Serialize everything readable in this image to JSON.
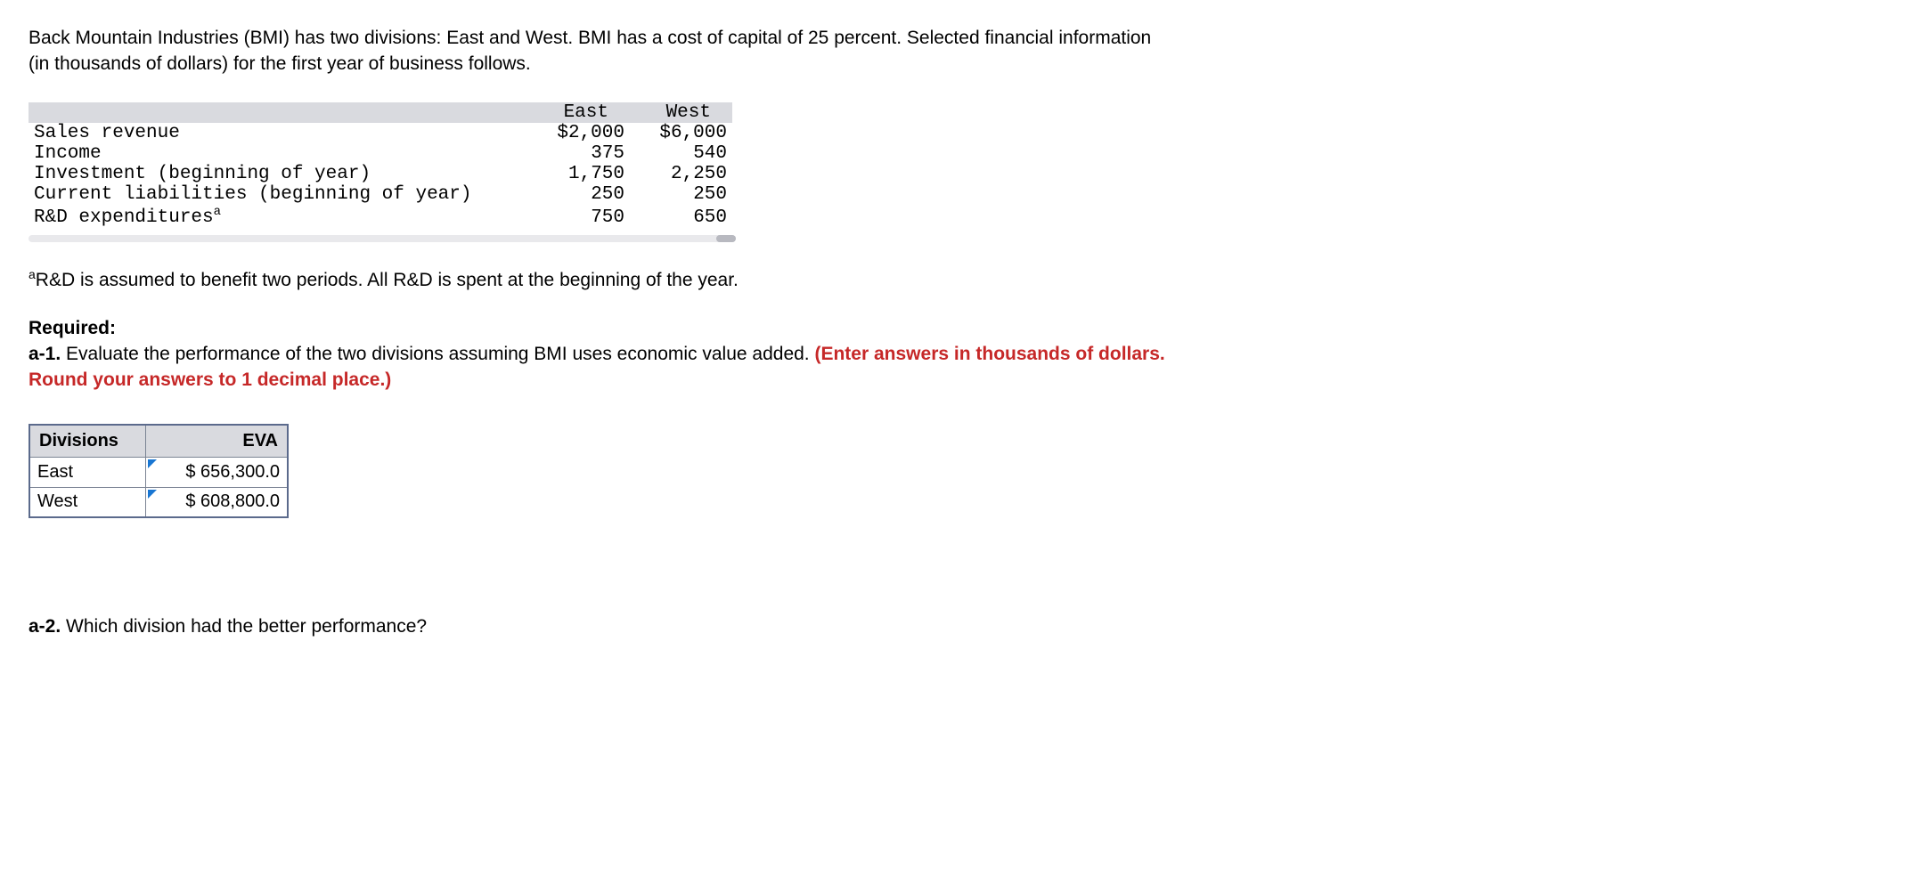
{
  "problem": {
    "line1": "Back Mountain Industries (BMI) has two divisions: East and West. BMI has a cost of capital of 25 percent. Selected financial information",
    "line2": "(in thousands of dollars) for the first year of business follows."
  },
  "financial_table": {
    "columns": [
      "",
      "East",
      "West"
    ],
    "rows": [
      {
        "label": "Sales revenue",
        "east": "$2,000",
        "west": "$6,000"
      },
      {
        "label": "Income",
        "east": "375",
        "west": "540"
      },
      {
        "label": "Investment (beginning of year)",
        "east": "1,750",
        "west": "2,250"
      },
      {
        "label": "Current liabilities (beginning of year)",
        "east": "250",
        "west": "250"
      },
      {
        "label": "R&D expenditures",
        "label_sup": "a",
        "east": "750",
        "west": "650"
      }
    ],
    "header_bg": "#d9dadf",
    "font": "Courier New"
  },
  "footnote": {
    "sup": "a",
    "text": "R&D is assumed to benefit two periods. All R&D is spent at the beginning of the year."
  },
  "required": {
    "heading": "Required:",
    "a1_prefix": "a-1.",
    "a1_text": " Evaluate the performance of the two divisions assuming BMI uses economic value added. ",
    "a1_red1": "(Enter answers in thousands of dollars.",
    "a1_red2": "Round your answers to 1 decimal place.)"
  },
  "answer_table": {
    "headers": [
      "Divisions",
      "EVA"
    ],
    "rows": [
      {
        "division": "East",
        "eva": "$ 656,300.0"
      },
      {
        "division": "West",
        "eva": "$ 608,800.0"
      }
    ],
    "header_bg": "#d9dadf",
    "border_color": "#5b6a8c",
    "marker_color": "#1976d2"
  },
  "a2": {
    "prefix": "a-2.",
    "text": " Which division had the better performance?"
  }
}
